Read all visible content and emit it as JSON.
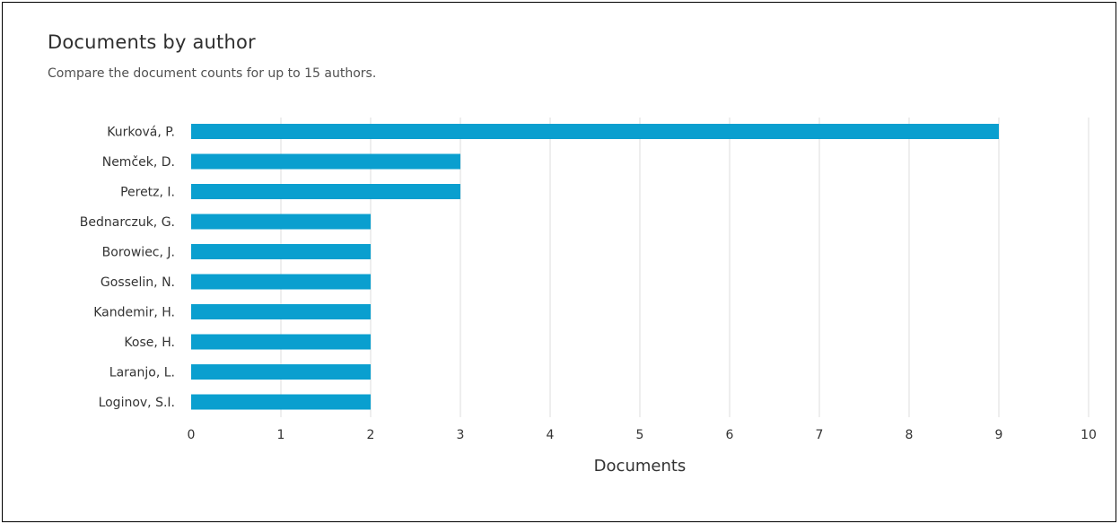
{
  "header": {
    "title": "Documents by author",
    "subtitle": "Compare the document counts for up to 15 authors."
  },
  "colors": {
    "bar": "#0a9fcf",
    "grid": "#dcdcdc",
    "text": "#333333"
  },
  "chart_data": {
    "type": "bar",
    "orientation": "horizontal",
    "title": "Documents by author",
    "subtitle": "Compare the document counts for up to 15 authors.",
    "xlabel": "Documents",
    "ylabel": "",
    "xlim": [
      0,
      10
    ],
    "xticks": [
      0,
      1,
      2,
      3,
      4,
      5,
      6,
      7,
      8,
      9,
      10
    ],
    "grid": "vertical",
    "legend": "none",
    "categories": [
      "Kurková, P.",
      "Nemček, D.",
      "Peretz, I.",
      "Bednarczuk, G.",
      "Borowiec, J.",
      "Gosselin, N.",
      "Kandemir, H.",
      "Kose, H.",
      "Laranjo, L.",
      "Loginov, S.I."
    ],
    "values": [
      9,
      3,
      3,
      2,
      2,
      2,
      2,
      2,
      2,
      2
    ]
  }
}
